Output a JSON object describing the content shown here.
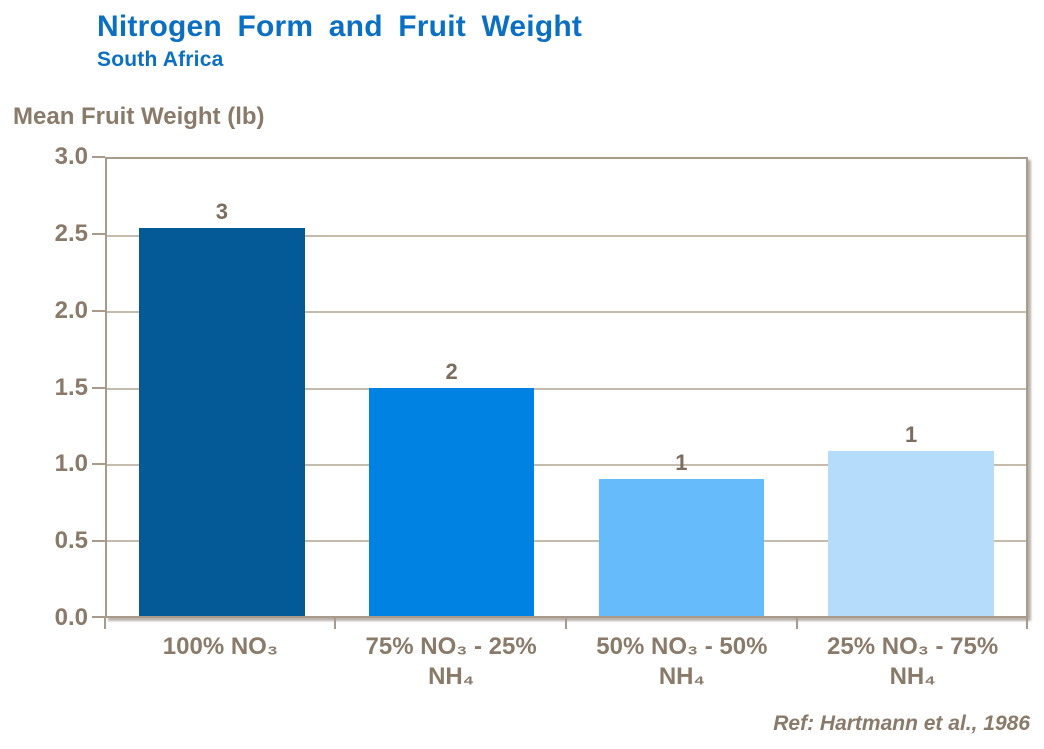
{
  "header": {
    "title": "Nitrogen Form and Fruit Weight",
    "subtitle": "South Africa"
  },
  "footer": {
    "reference": "Ref: Hartmann et al., 1986"
  },
  "chart_data": {
    "type": "bar",
    "title": "Nitrogen Form and Fruit Weight",
    "subtitle": "South Africa",
    "ylabel": "Mean Fruit Weight (lb)",
    "xlabel": "",
    "ylim": [
      0,
      3.0
    ],
    "ytick_step": 0.5,
    "yticks": [
      "3.0",
      "2.5",
      "2.0",
      "1.5",
      "1.0",
      "0.5",
      "0.0"
    ],
    "grid": "horizontal gridlines every 0.5, no vertical gridlines",
    "legend": "none",
    "categories": [
      "100% NO₃",
      "75% NO₃ - 25% NH₄",
      "50% NO₃ - 50% NH₄",
      "25% NO₃ - 75% NH₄"
    ],
    "values": [
      2.55,
      1.5,
      0.9,
      1.08
    ],
    "bar_labels": [
      "3",
      "2",
      "1",
      "1"
    ],
    "bar_colors": [
      "#035a96",
      "#0082e3",
      "#66bbfb",
      "#b5dcfb"
    ],
    "annotation": "Ref: Hartmann et al., 1986"
  },
  "colors": {
    "title_blue": "#0c70c2",
    "axis_text": "#8a7a6a",
    "data_label_text": "#7c6e5f",
    "axis_line": "#a89b8c",
    "gridline": "#c5bcad",
    "background": "#ffffff"
  }
}
